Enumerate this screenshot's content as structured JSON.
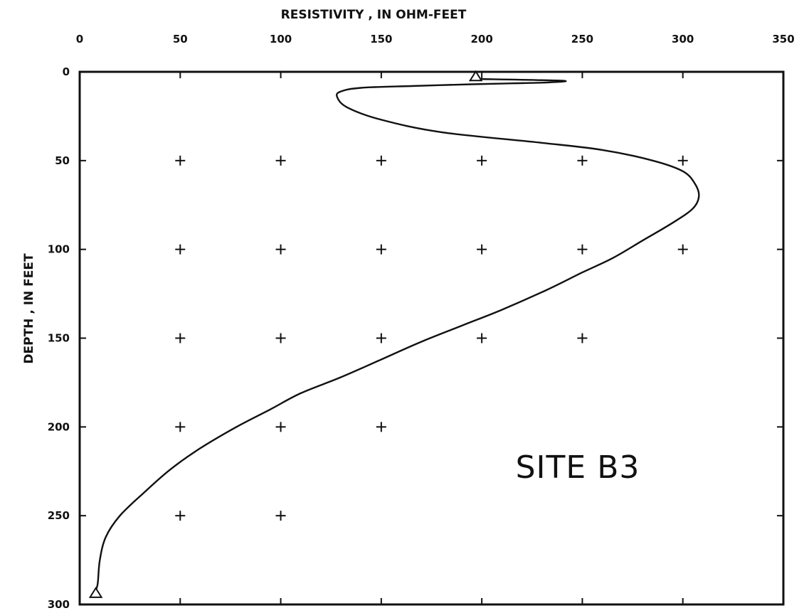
{
  "chart_data": {
    "type": "line",
    "title": "",
    "xlabel": "RESISTIVITY , IN OHM-FEET",
    "ylabel": "DEPTH , IN FEET",
    "xlim": [
      0,
      350
    ],
    "ylim": [
      0,
      300
    ],
    "y_inverted": true,
    "x_axis_position": "top",
    "x_ticks": [
      0,
      50,
      100,
      150,
      200,
      250,
      300,
      350
    ],
    "y_ticks": [
      0,
      50,
      100,
      150,
      200,
      250,
      300
    ],
    "grid": "plus-markers",
    "annotation": "SITE B3",
    "colors": {
      "line": "#111111",
      "frame": "#111111"
    },
    "series": [
      {
        "x": [
          197,
          240,
          232,
          215,
          195,
          165,
          140,
          130,
          128,
          133,
          150,
          180,
          230,
          260,
          285,
          300,
          306,
          308,
          305,
          295,
          280,
          265,
          250,
          232,
          210,
          190,
          170,
          150,
          130,
          110,
          95,
          78,
          60,
          45,
          32,
          20,
          13,
          10,
          9,
          8
        ],
        "y": [
          4,
          5,
          6,
          6.5,
          7,
          8,
          9,
          11,
          14,
          20,
          27,
          34,
          40,
          44,
          50,
          56,
          63,
          70,
          77,
          85,
          95,
          105,
          113,
          123,
          134,
          143,
          152,
          162,
          172,
          181,
          190,
          200,
          212,
          224,
          237,
          250,
          262,
          275,
          288,
          292
        ]
      }
    ],
    "end_markers": [
      {
        "x": 197,
        "y": 3
      },
      {
        "x": 8,
        "y": 294
      }
    ],
    "grid_markers": [
      {
        "x": 50,
        "y": 50
      },
      {
        "x": 100,
        "y": 50
      },
      {
        "x": 150,
        "y": 50
      },
      {
        "x": 200,
        "y": 50
      },
      {
        "x": 250,
        "y": 50
      },
      {
        "x": 300,
        "y": 50
      },
      {
        "x": 50,
        "y": 100
      },
      {
        "x": 100,
        "y": 100
      },
      {
        "x": 150,
        "y": 100
      },
      {
        "x": 200,
        "y": 100
      },
      {
        "x": 250,
        "y": 100
      },
      {
        "x": 300,
        "y": 100
      },
      {
        "x": 50,
        "y": 150
      },
      {
        "x": 100,
        "y": 150
      },
      {
        "x": 150,
        "y": 150
      },
      {
        "x": 200,
        "y": 150
      },
      {
        "x": 250,
        "y": 150
      },
      {
        "x": 50,
        "y": 200
      },
      {
        "x": 100,
        "y": 200
      },
      {
        "x": 150,
        "y": 200
      },
      {
        "x": 50,
        "y": 250
      },
      {
        "x": 100,
        "y": 250
      }
    ]
  }
}
